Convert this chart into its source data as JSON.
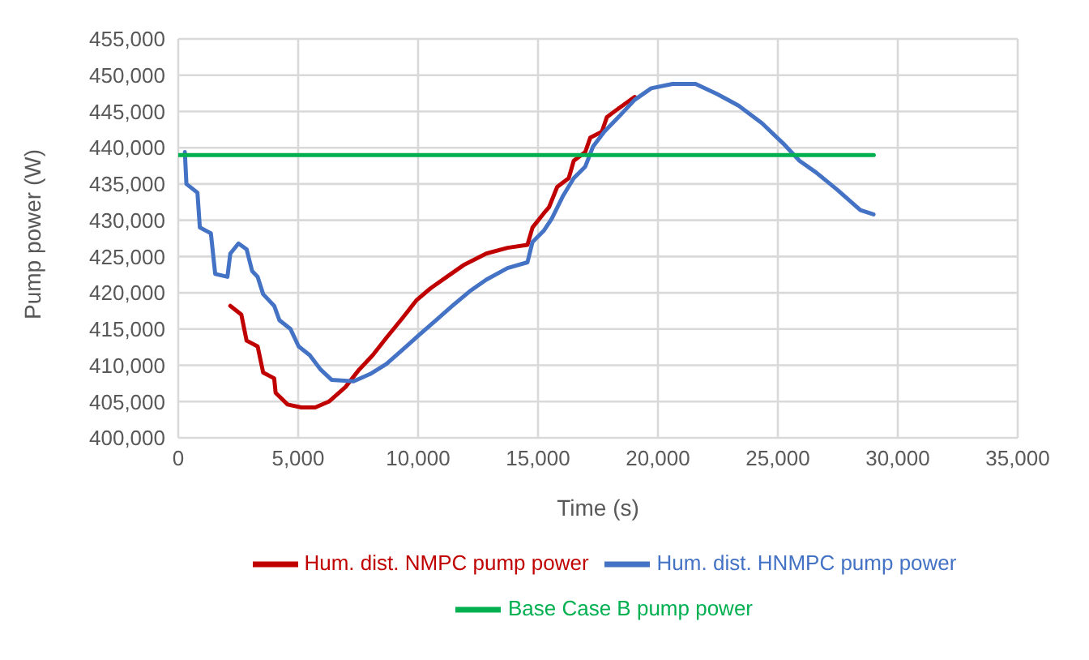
{
  "chart_data": {
    "type": "line",
    "xlabel": "Time (s)",
    "ylabel": "Pump power (W)",
    "xlim": [
      0,
      35000
    ],
    "xticks": [
      {
        "value": 0,
        "label": "0"
      },
      {
        "value": 5000,
        "label": "5,000"
      },
      {
        "value": 10000,
        "label": "10,000"
      },
      {
        "value": 15000,
        "label": "15,000"
      },
      {
        "value": 20000,
        "label": "20,000"
      },
      {
        "value": 25000,
        "label": "25,000"
      },
      {
        "value": 30000,
        "label": "30,000"
      },
      {
        "value": 35000,
        "label": "35,000"
      }
    ],
    "ylim": [
      400000,
      455000
    ],
    "yticks": [
      {
        "value": 400000,
        "label": "400,000"
      },
      {
        "value": 405000,
        "label": "405,000"
      },
      {
        "value": 410000,
        "label": "410,000"
      },
      {
        "value": 415000,
        "label": "415,000"
      },
      {
        "value": 420000,
        "label": "420,000"
      },
      {
        "value": 425000,
        "label": "425,000"
      },
      {
        "value": 430000,
        "label": "430,000"
      },
      {
        "value": 435000,
        "label": "435,000"
      },
      {
        "value": 440000,
        "label": "440,000"
      },
      {
        "value": 445000,
        "label": "445,000"
      },
      {
        "value": 450000,
        "label": "450,000"
      },
      {
        "value": 455000,
        "label": "455,000"
      }
    ],
    "grid": true,
    "legend": "bottom",
    "marker": "none",
    "line_style": "solid",
    "series": [
      {
        "name": "Hum. dist. NMPC pump power",
        "color": "#c00000",
        "x": [
          2170,
          2630,
          2850,
          3310,
          3540,
          4000,
          4060,
          4560,
          5130,
          5710,
          6280,
          6970,
          7540,
          8110,
          8680,
          9370,
          9940,
          10510,
          11200,
          11890,
          12840,
          13730,
          14560,
          14770,
          15250,
          15460,
          15800,
          16280,
          16490,
          16970,
          17180,
          17660,
          17870,
          18350,
          19030
        ],
        "values": [
          418200,
          417000,
          413400,
          412600,
          409000,
          408200,
          406200,
          404600,
          404200,
          404200,
          405000,
          407000,
          409400,
          411400,
          413800,
          416600,
          419000,
          420600,
          422200,
          423800,
          425400,
          426200,
          426600,
          429000,
          431000,
          431800,
          434600,
          435800,
          438200,
          439400,
          441400,
          442200,
          444200,
          445400,
          447000
        ]
      },
      {
        "name": "Hum. dist. HNMPC pump power",
        "color": "#4472c4",
        "x": [
          275,
          340,
          800,
          900,
          1360,
          1540,
          2050,
          2170,
          2510,
          2850,
          3080,
          3310,
          3540,
          4000,
          4220,
          4680,
          5020,
          5480,
          5940,
          6390,
          7310,
          8000,
          8680,
          9370,
          10050,
          10740,
          11430,
          12150,
          12840,
          13730,
          14560,
          14770,
          15250,
          15570,
          16050,
          16490,
          16970,
          17300,
          17760,
          18350,
          19030,
          19720,
          20610,
          21570,
          22470,
          23360,
          24330,
          25220,
          25900,
          26590,
          27480,
          28440,
          28990
        ],
        "values": [
          439400,
          435000,
          433800,
          429000,
          428200,
          422600,
          422200,
          425400,
          426800,
          426000,
          423000,
          422200,
          419800,
          418200,
          416200,
          415000,
          412600,
          411400,
          409400,
          408000,
          407800,
          408800,
          410200,
          412200,
          414200,
          416200,
          418200,
          420200,
          421800,
          423400,
          424200,
          427000,
          428600,
          430200,
          433400,
          435800,
          437400,
          440200,
          442200,
          444200,
          446600,
          448200,
          448800,
          448800,
          447400,
          445800,
          443400,
          440600,
          438200,
          436600,
          434200,
          431400,
          430800
        ]
      },
      {
        "name": "Base Case B pump power",
        "color": "#00b050",
        "x": [
          0,
          29000
        ],
        "values": [
          439000,
          439000
        ]
      }
    ]
  }
}
